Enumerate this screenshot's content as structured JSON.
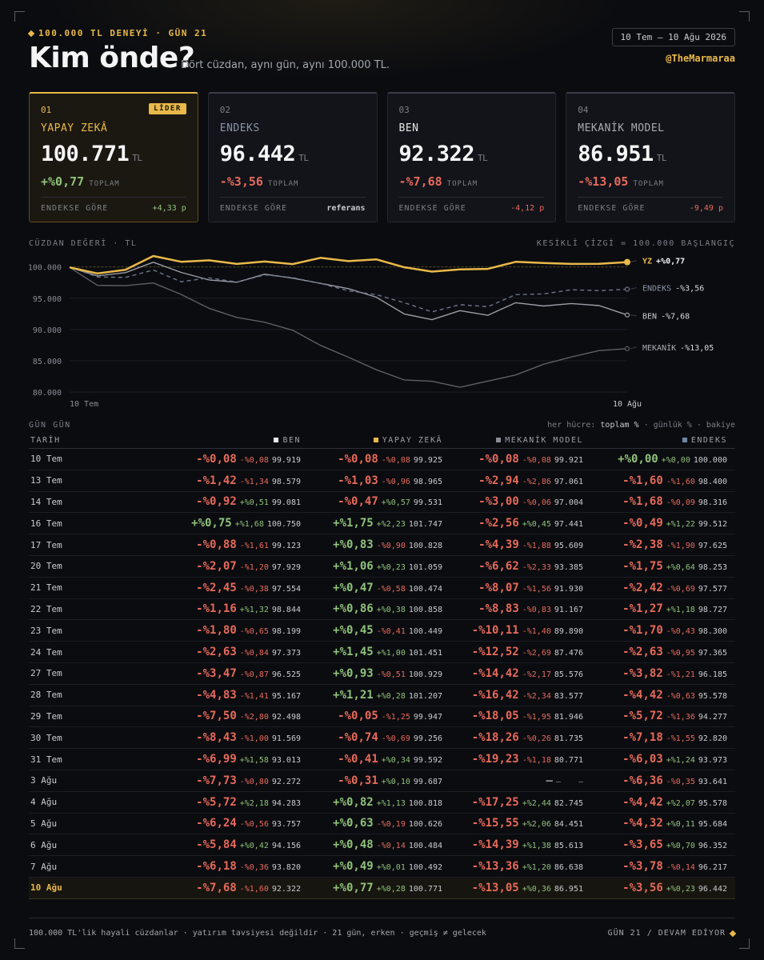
{
  "header": {
    "kicker": "100.000 TL DENEYİ · GÜN 21",
    "title": "Kim önde?",
    "subtitle": "Dört cüzdan, aynı gün, aynı 100.000 TL.",
    "date_range": "10 Tem – 10 Ağu 2026",
    "handle": "@TheMarmaraa"
  },
  "cards": [
    {
      "num": "01",
      "badge": "LİDER",
      "name": "YAPAY ZEKÂ",
      "value": "100.771",
      "currency": "TL",
      "pct": "+%0,77",
      "pct_label": "TOPLAM",
      "vs_label": "ENDEKSE GÖRE",
      "vs": "+4,33 p"
    },
    {
      "num": "02",
      "badge": "",
      "name": "ENDEKS",
      "value": "96.442",
      "currency": "TL",
      "pct": "-%3,56",
      "pct_label": "TOPLAM",
      "vs_label": "ENDEKSE GÖRE",
      "vs": "referans"
    },
    {
      "num": "03",
      "badge": "",
      "name": "BEN",
      "value": "92.322",
      "currency": "TL",
      "pct": "-%7,68",
      "pct_label": "TOPLAM",
      "vs_label": "ENDEKSE GÖRE",
      "vs": "-4,12 p"
    },
    {
      "num": "04",
      "badge": "",
      "name": "MEKANİK MODEL",
      "value": "86.951",
      "currency": "TL",
      "pct": "-%13,05",
      "pct_label": "TOPLAM",
      "vs_label": "ENDEKSE GÖRE",
      "vs": "-9,49 p"
    }
  ],
  "chart_head": {
    "left": "CÜZDAN DEĞERİ · TL",
    "right": "KESİKLİ ÇİZGİ = 100.000 BAŞLANGIÇ"
  },
  "chart_data": {
    "type": "line",
    "y_ticks": [
      "100.000",
      "95.000",
      "90.000",
      "85.000",
      "80.000"
    ],
    "x_labels": {
      "start": "10 Tem",
      "end": "10 Ağu"
    },
    "ylim": [
      79000,
      102000
    ],
    "baseline": 100000,
    "x": [
      "10 Tem",
      "13 Tem",
      "14 Tem",
      "16 Tem",
      "17 Tem",
      "20 Tem",
      "21 Tem",
      "22 Tem",
      "23 Tem",
      "24 Tem",
      "27 Tem",
      "28 Tem",
      "29 Tem",
      "30 Tem",
      "31 Tem",
      "3 Ağu",
      "4 Ağu",
      "5 Ağu",
      "6 Ağu",
      "7 Ağu",
      "10 Ağu"
    ],
    "series": [
      {
        "name": "YZ",
        "end_label": "YZ",
        "end_pct": "+%0,77",
        "color": "#e9b949",
        "style": "solid-thick",
        "values": [
          99925,
          98965,
          99531,
          101747,
          100828,
          101059,
          100474,
          100858,
          100449,
          101451,
          100929,
          101207,
          99947,
          99256,
          99592,
          99687,
          100818,
          100626,
          100484,
          100492,
          100771
        ]
      },
      {
        "name": "ENDEKS",
        "end_label": "ENDEKS",
        "end_pct": "-%3,56",
        "color": "#6c7488",
        "style": "dashed",
        "values": [
          100000,
          98400,
          98316,
          99512,
          97625,
          98253,
          97577,
          98727,
          98300,
          97365,
          96185,
          95578,
          94277,
          92820,
          93973,
          93641,
          95578,
          95684,
          96352,
          96217,
          96442
        ]
      },
      {
        "name": "BEN",
        "end_label": "BEN",
        "end_pct": "-%7,68",
        "color": "#9a9da4",
        "style": "solid",
        "values": [
          99919,
          98579,
          99081,
          100750,
          99123,
          97929,
          97554,
          98844,
          98199,
          97373,
          96525,
          95167,
          92498,
          91569,
          93013,
          92272,
          94283,
          93757,
          94156,
          93820,
          92322
        ]
      },
      {
        "name": "MEKANİK",
        "end_label": "MEKANİK",
        "end_pct": "-%13,05",
        "color": "#5c5f66",
        "style": "solid",
        "values": [
          99921,
          97061,
          97004,
          97441,
          95609,
          93385,
          91930,
          91167,
          89890,
          87476,
          85576,
          83577,
          81946,
          81735,
          80771,
          null,
          82745,
          84451,
          85613,
          86638,
          86951
        ]
      }
    ]
  },
  "table": {
    "title": "GÜN GÜN",
    "legend_prefix": "her hücre:",
    "legend_bold": "toplam %",
    "legend_rest": "· günlük % · bakiye",
    "columns": [
      {
        "label": "TARİH"
      },
      {
        "label": "BEN",
        "color": "#e8e8e8"
      },
      {
        "label": "YAPAY ZEKÂ",
        "color": "#e9b949"
      },
      {
        "label": "MEKANİK MODEL",
        "color": "#8a8d95"
      },
      {
        "label": "ENDEKS",
        "color": "#6f86a8"
      }
    ],
    "rows": [
      {
        "date": "10 Tem",
        "cells": [
          [
            "-%0,08",
            "-%0,08",
            "99.919"
          ],
          [
            "-%0,08",
            "-%0,08",
            "99.925"
          ],
          [
            "-%0,08",
            "-%0,08",
            "99.921"
          ],
          [
            "+%0,00",
            "+%0,00",
            "100.000"
          ]
        ]
      },
      {
        "date": "13 Tem",
        "cells": [
          [
            "-%1,42",
            "-%1,34",
            "98.579"
          ],
          [
            "-%1,03",
            "-%0,96",
            "98.965"
          ],
          [
            "-%2,94",
            "-%2,86",
            "97.061"
          ],
          [
            "-%1,60",
            "-%1,60",
            "98.400"
          ]
        ]
      },
      {
        "date": "14 Tem",
        "cells": [
          [
            "-%0,92",
            "+%0,51",
            "99.081"
          ],
          [
            "-%0,47",
            "+%0,57",
            "99.531"
          ],
          [
            "-%3,00",
            "-%0,06",
            "97.004"
          ],
          [
            "-%1,68",
            "-%0,09",
            "98.316"
          ]
        ]
      },
      {
        "date": "16 Tem",
        "cells": [
          [
            "+%0,75",
            "+%1,68",
            "100.750"
          ],
          [
            "+%1,75",
            "+%2,23",
            "101.747"
          ],
          [
            "-%2,56",
            "+%0,45",
            "97.441"
          ],
          [
            "-%0,49",
            "+%1,22",
            "99.512"
          ]
        ]
      },
      {
        "date": "17 Tem",
        "cells": [
          [
            "-%0,88",
            "-%1,61",
            "99.123"
          ],
          [
            "+%0,83",
            "-%0,90",
            "100.828"
          ],
          [
            "-%4,39",
            "-%1,88",
            "95.609"
          ],
          [
            "-%2,38",
            "-%1,90",
            "97.625"
          ]
        ]
      },
      {
        "date": "20 Tem",
        "cells": [
          [
            "-%2,07",
            "-%1,20",
            "97.929"
          ],
          [
            "+%1,06",
            "+%0,23",
            "101.059"
          ],
          [
            "-%6,62",
            "-%2,33",
            "93.385"
          ],
          [
            "-%1,75",
            "+%0,64",
            "98.253"
          ]
        ]
      },
      {
        "date": "21 Tem",
        "cells": [
          [
            "-%2,45",
            "-%0,38",
            "97.554"
          ],
          [
            "+%0,47",
            "-%0,58",
            "100.474"
          ],
          [
            "-%8,07",
            "-%1,56",
            "91.930"
          ],
          [
            "-%2,42",
            "-%0,69",
            "97.577"
          ]
        ]
      },
      {
        "date": "22 Tem",
        "cells": [
          [
            "-%1,16",
            "+%1,32",
            "98.844"
          ],
          [
            "+%0,86",
            "+%0,38",
            "100.858"
          ],
          [
            "-%8,83",
            "-%0,83",
            "91.167"
          ],
          [
            "-%1,27",
            "+%1,18",
            "98.727"
          ]
        ]
      },
      {
        "date": "23 Tem",
        "cells": [
          [
            "-%1,80",
            "-%0,65",
            "98.199"
          ],
          [
            "+%0,45",
            "-%0,41",
            "100.449"
          ],
          [
            "-%10,11",
            "-%1,40",
            "89.890"
          ],
          [
            "-%1,70",
            "-%0,43",
            "98.300"
          ]
        ]
      },
      {
        "date": "24 Tem",
        "cells": [
          [
            "-%2,63",
            "-%0,84",
            "97.373"
          ],
          [
            "+%1,45",
            "+%1,00",
            "101.451"
          ],
          [
            "-%12,52",
            "-%2,69",
            "87.476"
          ],
          [
            "-%2,63",
            "-%0,95",
            "97.365"
          ]
        ]
      },
      {
        "date": "27 Tem",
        "cells": [
          [
            "-%3,47",
            "-%0,87",
            "96.525"
          ],
          [
            "+%0,93",
            "-%0,51",
            "100.929"
          ],
          [
            "-%14,42",
            "-%2,17",
            "85.576"
          ],
          [
            "-%3,82",
            "-%1,21",
            "96.185"
          ]
        ]
      },
      {
        "date": "28 Tem",
        "cells": [
          [
            "-%4,83",
            "-%1,41",
            "95.167"
          ],
          [
            "+%1,21",
            "+%0,28",
            "101.207"
          ],
          [
            "-%16,42",
            "-%2,34",
            "83.577"
          ],
          [
            "-%4,42",
            "-%0,63",
            "95.578"
          ]
        ]
      },
      {
        "date": "29 Tem",
        "cells": [
          [
            "-%7,50",
            "-%2,80",
            "92.498"
          ],
          [
            "-%0,05",
            "-%1,25",
            "99.947"
          ],
          [
            "-%18,05",
            "-%1,95",
            "81.946"
          ],
          [
            "-%5,72",
            "-%1,36",
            "94.277"
          ]
        ]
      },
      {
        "date": "30 Tem",
        "cells": [
          [
            "-%8,43",
            "-%1,00",
            "91.569"
          ],
          [
            "-%0,74",
            "-%0,69",
            "99.256"
          ],
          [
            "-%18,26",
            "-%0,26",
            "81.735"
          ],
          [
            "-%7,18",
            "-%1,55",
            "92.820"
          ]
        ]
      },
      {
        "date": "31 Tem",
        "cells": [
          [
            "-%6,99",
            "+%1,58",
            "93.013"
          ],
          [
            "-%0,41",
            "+%0,34",
            "99.592"
          ],
          [
            "-%19,23",
            "-%1,18",
            "80.771"
          ],
          [
            "-%6,03",
            "+%1,24",
            "93.973"
          ]
        ]
      },
      {
        "date": "3 Ağu",
        "cells": [
          [
            "-%7,73",
            "-%0,80",
            "92.272"
          ],
          [
            "-%0,31",
            "+%0,10",
            "99.687"
          ],
          [
            "—",
            "—",
            "—"
          ],
          [
            "-%6,36",
            "-%0,35",
            "93.641"
          ]
        ]
      },
      {
        "date": "4 Ağu",
        "cells": [
          [
            "-%5,72",
            "+%2,18",
            "94.283"
          ],
          [
            "+%0,82",
            "+%1,13",
            "100.818"
          ],
          [
            "-%17,25",
            "+%2,44",
            "82.745"
          ],
          [
            "-%4,42",
            "+%2,07",
            "95.578"
          ]
        ]
      },
      {
        "date": "5 Ağu",
        "cells": [
          [
            "-%6,24",
            "-%0,56",
            "93.757"
          ],
          [
            "+%0,63",
            "-%0,19",
            "100.626"
          ],
          [
            "-%15,55",
            "+%2,06",
            "84.451"
          ],
          [
            "-%4,32",
            "+%0,11",
            "95.684"
          ]
        ]
      },
      {
        "date": "6 Ağu",
        "cells": [
          [
            "-%5,84",
            "+%0,42",
            "94.156"
          ],
          [
            "+%0,48",
            "-%0,14",
            "100.484"
          ],
          [
            "-%14,39",
            "+%1,38",
            "85.613"
          ],
          [
            "-%3,65",
            "+%0,70",
            "96.352"
          ]
        ]
      },
      {
        "date": "7 Ağu",
        "cells": [
          [
            "-%6,18",
            "-%0,36",
            "93.820"
          ],
          [
            "+%0,49",
            "+%0,01",
            "100.492"
          ],
          [
            "-%13,36",
            "+%1,20",
            "86.638"
          ],
          [
            "-%3,78",
            "-%0,14",
            "96.217"
          ]
        ]
      },
      {
        "date": "10 Ağu",
        "cells": [
          [
            "-%7,68",
            "-%1,60",
            "92.322"
          ],
          [
            "+%0,77",
            "+%0,28",
            "100.771"
          ],
          [
            "-%13,05",
            "+%0,36",
            "86.951"
          ],
          [
            "-%3,56",
            "+%0,23",
            "96.442"
          ]
        ]
      }
    ]
  },
  "footer": {
    "left": "100.000 TL'lik hayali cüzdanlar · yatırım tavsiyesi değildir · 21 gün, erken · geçmiş ≠ gelecek",
    "right": "GÜN 21 / DEVAM EDİYOR"
  },
  "colors": {
    "accent": "#e9b949",
    "positive": "#8fc27a",
    "negative": "#e76a5a"
  }
}
